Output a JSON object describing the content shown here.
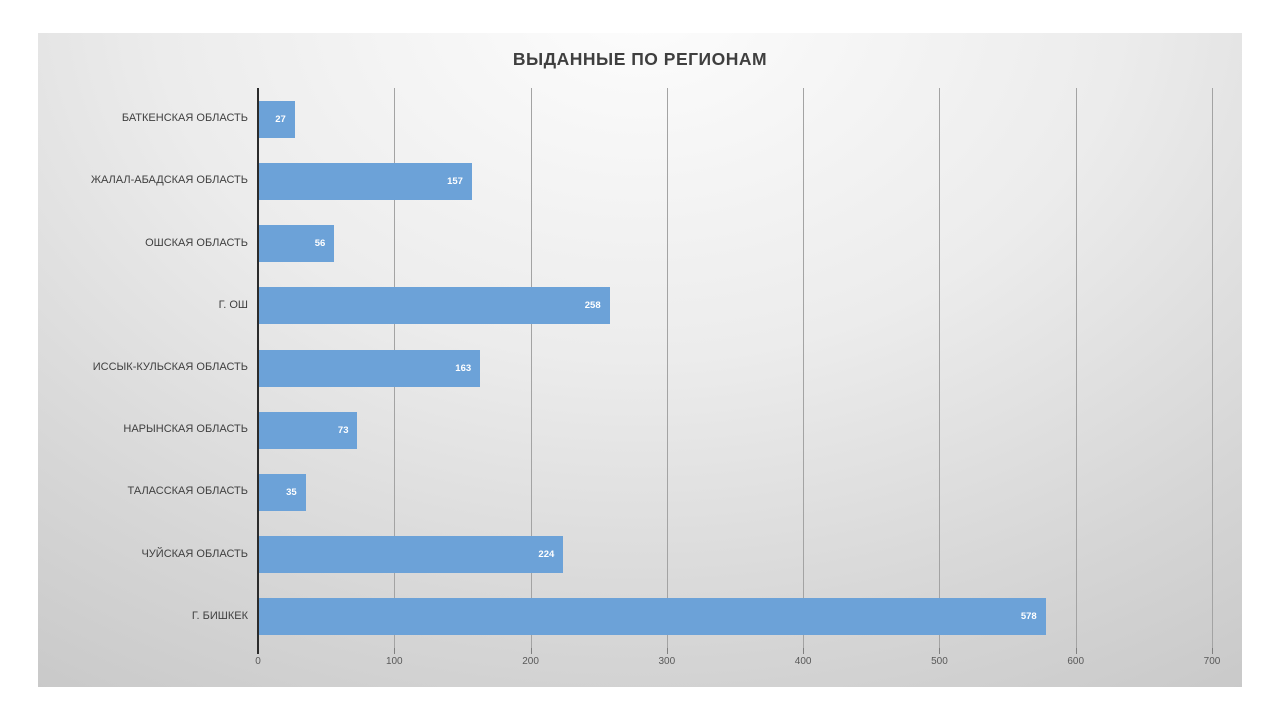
{
  "chart_data": {
    "type": "bar",
    "orientation": "horizontal",
    "title": "ВЫДАННЫЕ ПО РЕГИОНАМ",
    "categories": [
      "БАТКЕНСКАЯ ОБЛАСТЬ",
      "ЖАЛАЛ-АБАДСКАЯ ОБЛАСТЬ",
      "ОШСКАЯ ОБЛАСТЬ",
      "Г. ОШ",
      "ИССЫК-КУЛЬСКАЯ ОБЛАСТЬ",
      "НАРЫНСКАЯ ОБЛАСТЬ",
      "ТАЛАССКАЯ ОБЛАСТЬ",
      "ЧУЙСКАЯ ОБЛАСТЬ",
      "Г. БИШКЕК"
    ],
    "values": [
      27,
      157,
      56,
      258,
      163,
      73,
      35,
      224,
      578
    ],
    "data_labels": [
      27,
      157,
      56,
      258,
      163,
      73,
      35,
      224,
      578
    ],
    "xlabel": "",
    "ylabel": "",
    "xlim": [
      0,
      700
    ],
    "x_ticks": [
      0,
      100,
      200,
      300,
      400,
      500,
      600,
      700
    ],
    "grid": true,
    "legend": false,
    "colors": {
      "bar": "#6ca2d8",
      "value_label_text": "#ffffff",
      "title_text": "#3f3f3f",
      "category_text": "#404040",
      "tick_text": "#595959",
      "gridline": "#a3a3a3",
      "axis_line": "#2b2b2b"
    }
  }
}
